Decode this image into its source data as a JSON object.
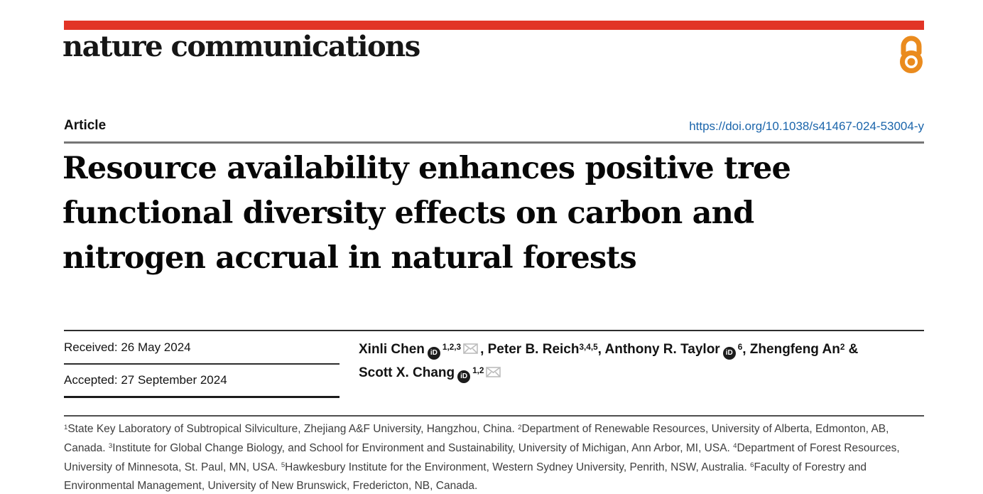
{
  "masthead": {
    "journal": "nature communications",
    "brand_bar_color": "#e23426",
    "open_access_color": "#ea8b1e"
  },
  "meta": {
    "kind_label": "Article",
    "doi_link": "https://doi.org/10.1038/s41467-024-53004-y",
    "link_color": "#1b65ab"
  },
  "article": {
    "title_lines": [
      "Resource availability enhances positive tree",
      "functional diversity effects on carbon and",
      "nitrogen accrual in natural forests"
    ]
  },
  "dates": {
    "received": "Received: 26 May 2024",
    "accepted": "Accepted: 27 September 2024"
  },
  "icons": {
    "orcid_label": "iD"
  },
  "authors": {
    "segments": [
      {
        "t": "text",
        "v": "Xinli Chen"
      },
      {
        "t": "orcid"
      },
      {
        "t": "sup",
        "v": "1,2,3"
      },
      {
        "t": "mail"
      },
      {
        "t": "text",
        "v": ", Peter B. Reich"
      },
      {
        "t": "sup",
        "v": "3,4,5"
      },
      {
        "t": "text",
        "v": ", Anthony R. Taylor"
      },
      {
        "t": "orcid"
      },
      {
        "t": "sup",
        "v": "6"
      },
      {
        "t": "text",
        "v": ", Zhengfeng An"
      },
      {
        "t": "sup",
        "v": "2"
      },
      {
        "t": "text",
        "v": " &"
      },
      {
        "t": "br"
      },
      {
        "t": "text",
        "v": "Scott X. Chang"
      },
      {
        "t": "orcid"
      },
      {
        "t": "sup",
        "v": "1,2"
      },
      {
        "t": "mail"
      }
    ]
  },
  "affiliations": {
    "segments": [
      {
        "t": "sup",
        "v": "1"
      },
      {
        "t": "text",
        "v": "State Key Laboratory of Subtropical Silviculture, Zhejiang A&F University, Hangzhou, China. "
      },
      {
        "t": "sup",
        "v": "2"
      },
      {
        "t": "text",
        "v": "Department of Renewable Resources, University of Alberta, Edmonton, AB, Canada. "
      },
      {
        "t": "sup",
        "v": "3"
      },
      {
        "t": "text",
        "v": "Institute for Global Change Biology, and School for Environment and Sustainability, University of Michigan, Ann Arbor, MI, USA. "
      },
      {
        "t": "sup",
        "v": "4"
      },
      {
        "t": "text",
        "v": "Department of Forest Resources, University of Minnesota, St. Paul, MN, USA. "
      },
      {
        "t": "sup",
        "v": "5"
      },
      {
        "t": "text",
        "v": "Hawkesbury Institute for the Environment, Western Sydney University, Penrith, NSW, Australia. "
      },
      {
        "t": "sup",
        "v": "6"
      },
      {
        "t": "text",
        "v": "Faculty of Forestry and Environmental Management, University of New Brunswick, Fredericton, NB, Canada."
      }
    ]
  }
}
